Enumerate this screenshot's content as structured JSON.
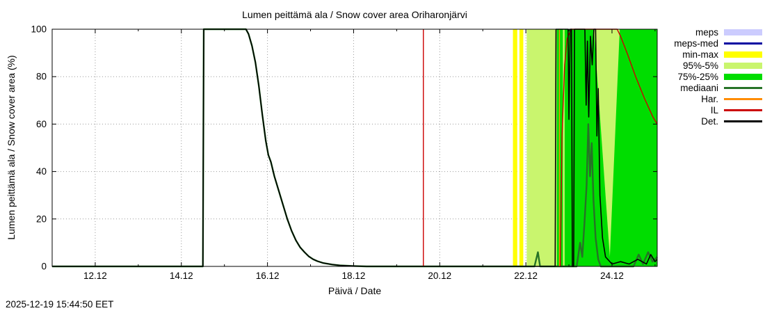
{
  "footer": {
    "timestamp": "2025-12-19 15:44:50 EET"
  },
  "chart_data": {
    "type": "line",
    "title": "Lumen peittämä ala / Snow cover area Oriharonjärvi",
    "xlabel": "Päivä / Date",
    "ylabel": "Lumen peittämä ala / Snow cover area (%)",
    "xlim": [
      11.0,
      25.05
    ],
    "ylim": [
      0,
      100
    ],
    "grid": true,
    "legend_position": "outside-right",
    "x_major_ticks": [
      {
        "v": 12,
        "label": "12.12"
      },
      {
        "v": 14,
        "label": "14.12"
      },
      {
        "v": 16,
        "label": "16.12"
      },
      {
        "v": 18,
        "label": "18.12"
      },
      {
        "v": 20,
        "label": "20.12"
      },
      {
        "v": 22,
        "label": "22.12"
      },
      {
        "v": 24,
        "label": "24.12"
      }
    ],
    "x_minor_ticks": [
      11,
      13,
      15,
      17,
      19,
      21,
      23,
      25
    ],
    "y_ticks": [
      0,
      20,
      40,
      60,
      80,
      100
    ],
    "legend": [
      {
        "label": "meps",
        "color": "#ccccfe",
        "style": "band"
      },
      {
        "label": "meps-med",
        "color": "#0000a0",
        "style": "line"
      },
      {
        "label": "min-max",
        "color": "#ffff00",
        "style": "band"
      },
      {
        "label": "95%-5%",
        "color": "#c9f56e",
        "style": "band"
      },
      {
        "label": "75%-25%",
        "color": "#00dd00",
        "style": "band"
      },
      {
        "label": "mediaani",
        "color": "#267326",
        "style": "line"
      },
      {
        "label": "Har.",
        "color": "#ff8c00",
        "style": "line"
      },
      {
        "label": "IL",
        "color": "#cc0000",
        "style": "line"
      },
      {
        "label": "Det.",
        "color": "#000000",
        "style": "line"
      }
    ],
    "bands": [
      {
        "name": "min-max-stripe-1",
        "color": "#ffff00",
        "points": [
          [
            21.7,
            0
          ],
          [
            21.7,
            100
          ],
          [
            21.8,
            100
          ],
          [
            21.8,
            0
          ]
        ]
      },
      {
        "name": "min-max-stripe-2",
        "color": "#ffff00",
        "points": [
          [
            21.85,
            0
          ],
          [
            21.85,
            100
          ],
          [
            21.94,
            100
          ],
          [
            21.94,
            0
          ]
        ]
      },
      {
        "name": "95-5-band",
        "color": "#c9f56e",
        "points": [
          [
            22.02,
            0
          ],
          [
            22.02,
            100
          ],
          [
            25.05,
            100
          ],
          [
            25.05,
            0
          ]
        ]
      },
      {
        "name": "75-25-band",
        "color": "#00dd00",
        "points": [
          [
            22.72,
            0
          ],
          [
            22.72,
            100
          ],
          [
            25.05,
            100
          ],
          [
            25.05,
            0
          ]
        ]
      },
      {
        "name": "95-5-sliver",
        "color": "#c9f56e",
        "points": [
          [
            22.86,
            0
          ],
          [
            22.86,
            100
          ],
          [
            22.9,
            100
          ],
          [
            22.9,
            0
          ]
        ]
      },
      {
        "name": "95-5-wedge",
        "color": "#c9f56e",
        "points": [
          [
            23.58,
            100
          ],
          [
            24.18,
            100
          ],
          [
            23.95,
            4
          ]
        ]
      }
    ],
    "series": [
      {
        "name": "mediaani",
        "color": "#267326",
        "width": 2.4,
        "segments": [
          [
            [
              11.0,
              0
            ],
            [
              14.5,
              0
            ],
            [
              14.52,
              100
            ],
            [
              15.5,
              100
            ],
            [
              15.56,
              98
            ],
            [
              15.64,
              93
            ],
            [
              15.72,
              86
            ],
            [
              15.8,
              76
            ],
            [
              15.88,
              64
            ],
            [
              15.96,
              53
            ],
            [
              16.02,
              47
            ],
            [
              16.08,
              44
            ],
            [
              16.16,
              38
            ],
            [
              16.26,
              32
            ],
            [
              16.36,
              26
            ],
            [
              16.46,
              20
            ],
            [
              16.56,
              15
            ],
            [
              16.66,
              11
            ],
            [
              16.76,
              8
            ],
            [
              16.86,
              6
            ],
            [
              16.96,
              4.2
            ],
            [
              17.06,
              3
            ],
            [
              17.16,
              2.2
            ],
            [
              17.3,
              1.4
            ],
            [
              17.5,
              0.8
            ],
            [
              17.7,
              0.4
            ],
            [
              17.95,
              0.2
            ],
            [
              18.3,
              0
            ],
            [
              22.2,
              0
            ],
            [
              22.28,
              6
            ],
            [
              22.33,
              0
            ],
            [
              23.18,
              0
            ],
            [
              23.26,
              10
            ],
            [
              23.31,
              4
            ],
            [
              23.36,
              18
            ],
            [
              23.41,
              34
            ],
            [
              23.45,
              60
            ],
            [
              23.49,
              38
            ],
            [
              23.53,
              52
            ],
            [
              23.57,
              28
            ],
            [
              23.62,
              12
            ],
            [
              23.68,
              3
            ],
            [
              23.74,
              0
            ],
            [
              24.5,
              0
            ],
            [
              24.62,
              5
            ],
            [
              24.72,
              1
            ],
            [
              24.84,
              6
            ],
            [
              24.94,
              2
            ],
            [
              25.05,
              4
            ]
          ]
        ]
      },
      {
        "name": "Har.",
        "color": "#ff8c00",
        "width": 1.4,
        "segments": [
          [
            [
              22.78,
              0
            ],
            [
              22.78,
              100
            ]
          ]
        ]
      },
      {
        "name": "IL",
        "color": "#cc0000",
        "width": 1.4,
        "segments": [
          [
            [
              19.62,
              0
            ],
            [
              19.62,
              100
            ]
          ],
          [
            [
              22.8,
              0
            ],
            [
              22.84,
              55
            ],
            [
              22.9,
              85
            ],
            [
              22.96,
              96
            ],
            [
              23.05,
              100
            ],
            [
              24.12,
              100
            ],
            [
              24.2,
              97
            ],
            [
              24.35,
              90
            ],
            [
              24.55,
              80
            ],
            [
              24.75,
              71
            ],
            [
              24.95,
              63
            ],
            [
              25.05,
              60
            ]
          ]
        ]
      },
      {
        "name": "Det.",
        "color": "#000000",
        "width": 1.6,
        "segments": [
          [
            [
              11.0,
              0
            ],
            [
              14.5,
              0
            ],
            [
              14.52,
              100
            ],
            [
              15.5,
              100
            ],
            [
              15.56,
              98
            ],
            [
              15.64,
              93
            ],
            [
              15.72,
              86
            ],
            [
              15.8,
              76
            ],
            [
              15.88,
              64
            ],
            [
              15.96,
              53
            ],
            [
              16.02,
              47
            ],
            [
              16.08,
              44
            ],
            [
              16.16,
              38
            ],
            [
              16.26,
              32
            ],
            [
              16.36,
              26
            ],
            [
              16.46,
              20
            ],
            [
              16.56,
              15
            ],
            [
              16.66,
              11
            ],
            [
              16.76,
              8
            ],
            [
              16.86,
              6
            ],
            [
              16.96,
              4.2
            ],
            [
              17.06,
              3
            ],
            [
              17.16,
              2.2
            ],
            [
              17.3,
              1.4
            ],
            [
              17.5,
              0.8
            ],
            [
              17.7,
              0.4
            ],
            [
              17.95,
              0.2
            ],
            [
              18.3,
              0
            ],
            [
              22.68,
              0
            ],
            [
              22.7,
              100
            ],
            [
              22.98,
              100
            ],
            [
              23.0,
              62
            ],
            [
              23.03,
              100
            ],
            [
              23.06,
              100
            ],
            [
              23.08,
              0
            ],
            [
              23.11,
              0
            ],
            [
              23.13,
              100
            ],
            [
              23.37,
              100
            ],
            [
              23.4,
              68
            ],
            [
              23.43,
              95
            ],
            [
              23.46,
              63
            ],
            [
              23.5,
              97
            ],
            [
              23.54,
              85
            ],
            [
              23.58,
              100
            ],
            [
              23.62,
              100
            ],
            [
              23.65,
              55
            ],
            [
              23.68,
              75
            ],
            [
              23.72,
              30
            ],
            [
              23.78,
              12
            ],
            [
              23.85,
              4
            ],
            [
              24.0,
              1
            ],
            [
              24.2,
              2
            ],
            [
              24.4,
              1
            ],
            [
              24.6,
              3
            ],
            [
              24.8,
              1
            ],
            [
              24.9,
              5
            ],
            [
              25.0,
              2
            ],
            [
              25.05,
              3
            ]
          ]
        ]
      }
    ]
  }
}
